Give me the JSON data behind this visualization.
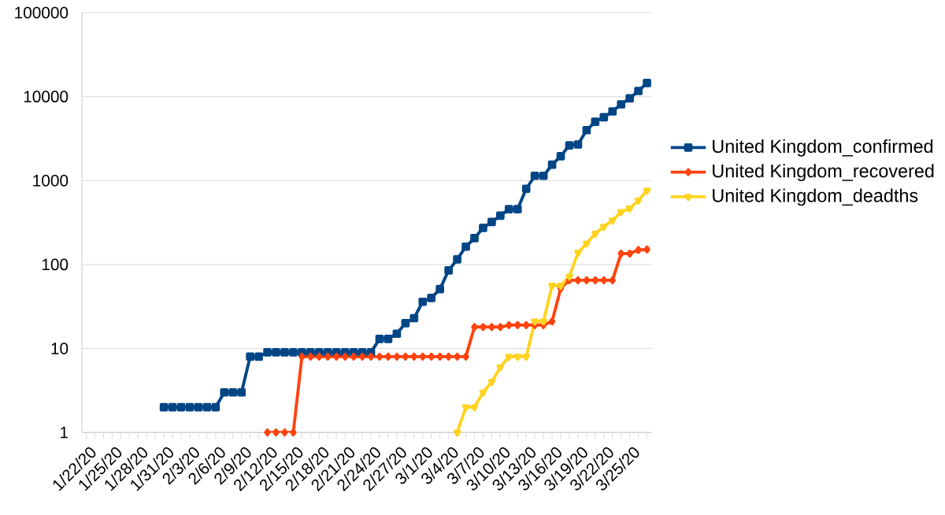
{
  "chart_data": {
    "type": "line",
    "categories": [
      "1/22/20",
      null,
      null,
      "1/25/20",
      null,
      null,
      "1/28/20",
      null,
      null,
      "1/31/20",
      null,
      null,
      "2/3/20",
      null,
      null,
      "2/6/20",
      null,
      null,
      "2/9/20",
      null,
      null,
      "2/12/20",
      null,
      null,
      "2/15/20",
      null,
      null,
      "2/18/20",
      null,
      null,
      "2/21/20",
      null,
      null,
      "2/24/20",
      null,
      null,
      "2/27/20",
      null,
      null,
      "3/1/20",
      null,
      null,
      "3/4/20",
      null,
      null,
      "3/7/20",
      null,
      null,
      "3/10/20",
      null,
      null,
      "3/13/20",
      null,
      null,
      "3/16/20",
      null,
      null,
      "3/19/20",
      null,
      null,
      "3/22/20",
      null,
      null,
      "3/25/20",
      null,
      null
    ],
    "series": [
      {
        "name": "United Kingdom_confirmed",
        "color": "#004586",
        "marker": "square",
        "values": [
          null,
          null,
          null,
          null,
          null,
          null,
          null,
          null,
          null,
          2,
          2,
          2,
          2,
          2,
          2,
          2,
          3,
          3,
          3,
          8,
          8,
          9,
          9,
          9,
          9,
          9,
          9,
          9,
          9,
          9,
          9,
          9,
          9,
          9,
          13,
          13,
          15,
          20,
          23,
          36,
          40,
          51,
          85,
          115,
          163,
          206,
          273,
          321,
          382,
          456,
          456,
          798,
          1140,
          1140,
          1543,
          1950,
          2626,
          2689,
          3983,
          5018,
          5683,
          6650,
          8077,
          9529,
          11658,
          14543
        ]
      },
      {
        "name": "United Kingdom_recovered",
        "color": "#ff420e",
        "marker": "diamond",
        "values": [
          null,
          null,
          null,
          null,
          null,
          null,
          null,
          null,
          null,
          null,
          null,
          null,
          null,
          null,
          null,
          null,
          null,
          null,
          null,
          null,
          null,
          1,
          1,
          1,
          1,
          8,
          8,
          8,
          8,
          8,
          8,
          8,
          8,
          8,
          8,
          8,
          8,
          8,
          8,
          8,
          8,
          8,
          8,
          8,
          8,
          18,
          18,
          18,
          18,
          19,
          19,
          19,
          19,
          19,
          21,
          52,
          65,
          65,
          65,
          65,
          65,
          65,
          135,
          135,
          149,
          151
        ]
      },
      {
        "name": "United Kingdom_deadths",
        "color": "#ffd320",
        "marker": "triangle",
        "values": [
          null,
          null,
          null,
          null,
          null,
          null,
          null,
          null,
          null,
          null,
          null,
          null,
          null,
          null,
          null,
          null,
          null,
          null,
          null,
          null,
          null,
          null,
          null,
          null,
          null,
          null,
          null,
          null,
          null,
          null,
          null,
          null,
          null,
          null,
          null,
          null,
          null,
          null,
          null,
          null,
          null,
          null,
          null,
          1,
          2,
          2,
          3,
          4,
          6,
          8,
          8,
          8,
          21,
          21,
          56,
          56,
          72,
          138,
          178,
          234,
          282,
          336,
          423,
          466,
          580,
          761
        ]
      }
    ],
    "log": true,
    "ylim": [
      1,
      100000
    ],
    "yticks": [
      1,
      10,
      100,
      1000,
      10000,
      100000
    ],
    "grid": "y",
    "legend": "right"
  }
}
